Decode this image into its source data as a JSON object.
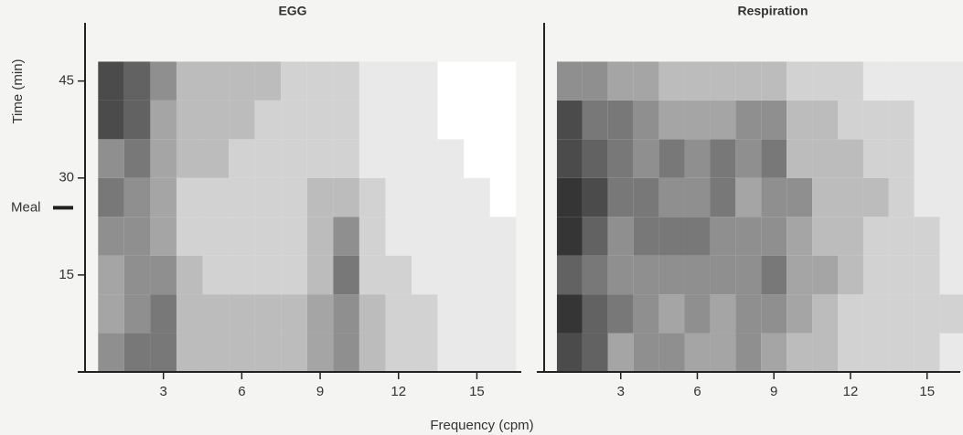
{
  "chart_data": [
    {
      "type": "heatmap",
      "title": "EGG",
      "ylabel": "Time (min)",
      "xlabel": "Frequency (cpm)",
      "annotation": {
        "text": "Meal",
        "y": 25.4
      },
      "colorscale": [
        "#ffffff",
        "#1e1e1e"
      ],
      "xlim": [
        0,
        16.7
      ],
      "ylim": [
        0,
        54
      ],
      "xticks": [
        3,
        6,
        9,
        12,
        15
      ],
      "yticks": [
        15,
        30,
        45
      ],
      "x": [
        1,
        2,
        3,
        4,
        5,
        6,
        7,
        8,
        9,
        10,
        11,
        12,
        13,
        14,
        15,
        16
      ],
      "y": [
        3,
        9,
        15,
        21,
        27,
        33,
        39,
        45
      ],
      "z": [
        [
          0.5,
          0.6,
          0.6,
          0.3,
          0.3,
          0.3,
          0.3,
          0.3,
          0.4,
          0.5,
          0.3,
          0.2,
          0.2,
          0.1,
          0.1,
          0.1
        ],
        [
          0.4,
          0.5,
          0.6,
          0.3,
          0.3,
          0.3,
          0.3,
          0.3,
          0.4,
          0.5,
          0.3,
          0.2,
          0.2,
          0.1,
          0.1,
          0.1
        ],
        [
          0.4,
          0.5,
          0.5,
          0.3,
          0.2,
          0.2,
          0.2,
          0.2,
          0.3,
          0.6,
          0.2,
          0.2,
          0.1,
          0.1,
          0.1,
          0.1
        ],
        [
          0.5,
          0.5,
          0.4,
          0.2,
          0.2,
          0.2,
          0.2,
          0.2,
          0.3,
          0.5,
          0.2,
          0.1,
          0.1,
          0.1,
          0.1,
          0.1
        ],
        [
          0.6,
          0.5,
          0.4,
          0.2,
          0.2,
          0.2,
          0.2,
          0.2,
          0.3,
          0.3,
          0.2,
          0.1,
          0.1,
          0.1,
          0.1,
          0
        ],
        [
          0.5,
          0.6,
          0.4,
          0.3,
          0.3,
          0.2,
          0.2,
          0.2,
          0.2,
          0.2,
          0.1,
          0.1,
          0.1,
          0.1,
          0,
          0
        ],
        [
          0.8,
          0.7,
          0.4,
          0.3,
          0.3,
          0.3,
          0.2,
          0.2,
          0.2,
          0.2,
          0.1,
          0.1,
          0.1,
          0,
          0,
          0
        ],
        [
          0.8,
          0.7,
          0.5,
          0.3,
          0.3,
          0.3,
          0.3,
          0.2,
          0.2,
          0.2,
          0.1,
          0.1,
          0.1,
          0,
          0,
          0
        ]
      ]
    },
    {
      "type": "heatmap",
      "title": "Respiration",
      "colorscale": [
        "#ffffff",
        "#1e1e1e"
      ],
      "xlim": [
        0,
        16.3
      ],
      "ylim": [
        0,
        54
      ],
      "xticks": [
        3,
        6,
        9,
        12,
        15
      ],
      "x": [
        1,
        2,
        3,
        4,
        5,
        6,
        7,
        8,
        9,
        10,
        11,
        12,
        13,
        14,
        15,
        16
      ],
      "y": [
        3,
        9,
        15,
        21,
        27,
        33,
        39,
        45
      ],
      "z": [
        [
          0.8,
          0.7,
          0.4,
          0.5,
          0.5,
          0.4,
          0.4,
          0.5,
          0.4,
          0.3,
          0.3,
          0.2,
          0.2,
          0.2,
          0.2,
          0.1
        ],
        [
          0.9,
          0.7,
          0.6,
          0.5,
          0.4,
          0.5,
          0.4,
          0.5,
          0.5,
          0.4,
          0.3,
          0.2,
          0.2,
          0.2,
          0.2,
          0.2
        ],
        [
          0.7,
          0.6,
          0.5,
          0.5,
          0.5,
          0.5,
          0.5,
          0.5,
          0.6,
          0.4,
          0.4,
          0.3,
          0.2,
          0.2,
          0.2,
          0.1
        ],
        [
          0.9,
          0.7,
          0.5,
          0.6,
          0.6,
          0.6,
          0.5,
          0.5,
          0.5,
          0.4,
          0.3,
          0.3,
          0.2,
          0.2,
          0.2,
          0.1
        ],
        [
          0.9,
          0.8,
          0.6,
          0.6,
          0.5,
          0.5,
          0.6,
          0.4,
          0.5,
          0.5,
          0.3,
          0.3,
          0.3,
          0.2,
          0.1,
          0.1
        ],
        [
          0.8,
          0.7,
          0.6,
          0.5,
          0.6,
          0.5,
          0.6,
          0.5,
          0.6,
          0.3,
          0.3,
          0.3,
          0.2,
          0.2,
          0.1,
          0.1
        ],
        [
          0.8,
          0.6,
          0.6,
          0.5,
          0.4,
          0.4,
          0.4,
          0.5,
          0.5,
          0.3,
          0.3,
          0.2,
          0.2,
          0.2,
          0.1,
          0.1
        ],
        [
          0.5,
          0.5,
          0.4,
          0.4,
          0.3,
          0.3,
          0.3,
          0.3,
          0.3,
          0.2,
          0.2,
          0.2,
          0.1,
          0.1,
          0.1,
          0.1
        ]
      ]
    }
  ]
}
